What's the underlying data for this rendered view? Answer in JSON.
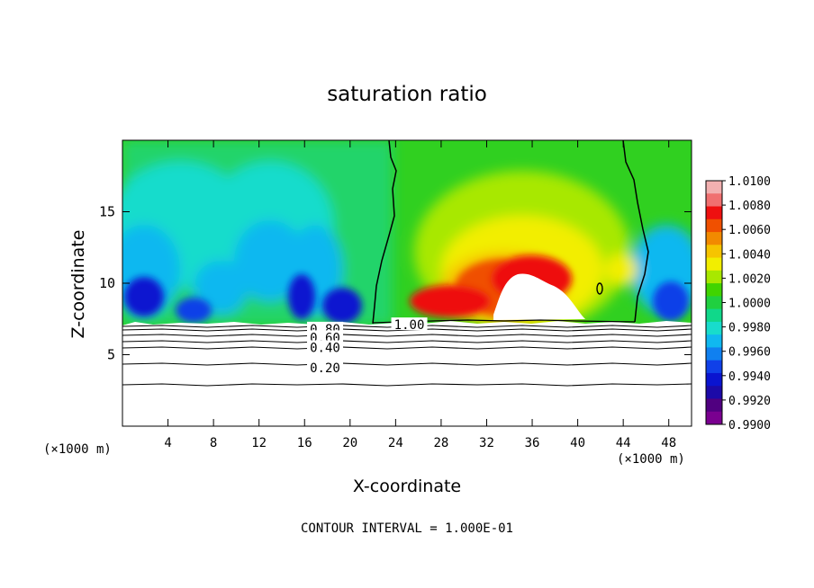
{
  "chart_data": {
    "type": "heatmap",
    "title": "saturation ratio",
    "xlabel": "X-coordinate",
    "ylabel": "Z-coordinate",
    "x_unit": "(×1000 m)",
    "y_unit": "(×1000 m)",
    "xlim": [
      0,
      50
    ],
    "ylim": [
      0,
      20
    ],
    "x_ticks": [
      4,
      8,
      12,
      16,
      20,
      24,
      28,
      32,
      36,
      40,
      44,
      48
    ],
    "y_ticks": [
      5,
      10,
      15
    ],
    "footer": "CONTOUR INTERVAL = 1.000E-01",
    "colorbar": {
      "labels": [
        "1.0100",
        "1.0080",
        "1.0060",
        "1.0040",
        "1.0020",
        "1.0000",
        "0.9980",
        "0.9960",
        "0.9940",
        "0.9920",
        "0.9900"
      ],
      "colors": [
        "#f2b0b0",
        "#f07070",
        "#ee1010",
        "#f05000",
        "#f28a00",
        "#f6c400",
        "#f2ee00",
        "#a8e800",
        "#40d400",
        "#20d040",
        "#10d88a",
        "#18dccc",
        "#10b8f0",
        "#1080f0",
        "#1040e8",
        "#0a14d0",
        "#1c0aa8",
        "#500080",
        "#7a0090"
      ]
    },
    "contour_labels": [
      {
        "text": "1.00",
        "x": 25.2,
        "z": 7.1
      },
      {
        "text": "0.80",
        "x": 17.8,
        "z": 6.8
      },
      {
        "text": "0.60",
        "x": 17.8,
        "z": 6.2
      },
      {
        "text": "0.40",
        "x": 17.8,
        "z": 5.5
      },
      {
        "text": "0.20",
        "x": 17.8,
        "z": 4.1
      }
    ]
  }
}
